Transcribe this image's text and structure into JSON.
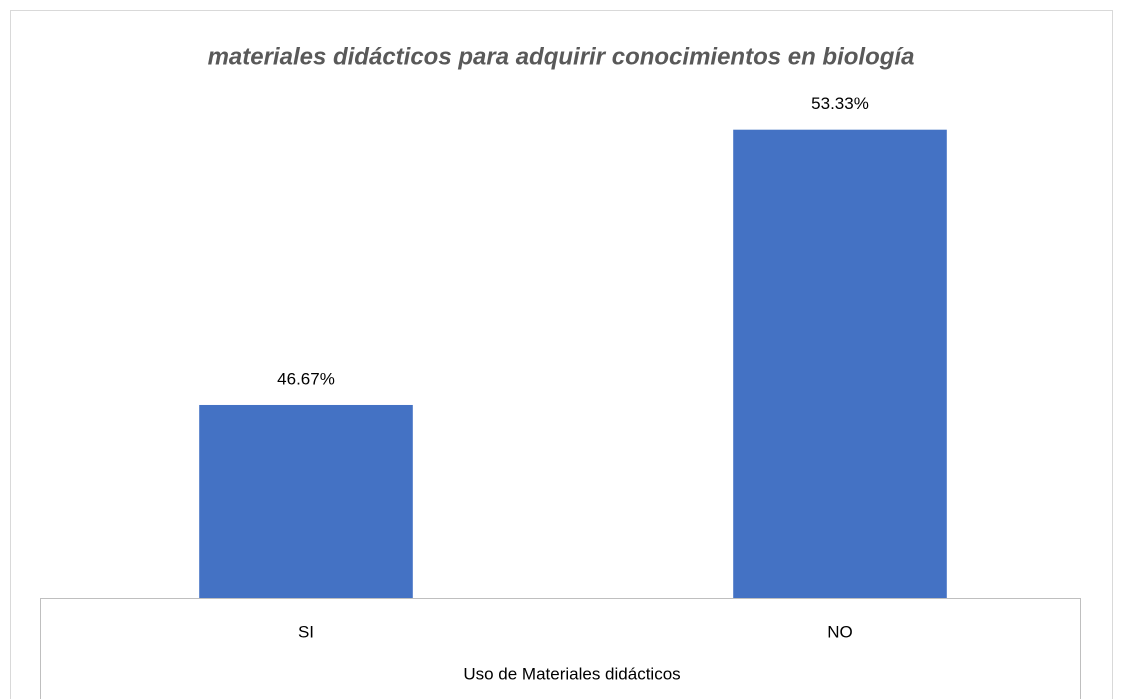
{
  "chart_data": {
    "type": "bar",
    "title": "materiales didácticos para adquirir conocimientos en biología",
    "x_label": "Uso de Materiales didácticos",
    "categories": [
      "SI",
      "NO"
    ],
    "values": [
      46.67,
      53.33
    ],
    "value_labels": [
      "46.67%",
      "53.33%"
    ],
    "color": "#4472c4",
    "ylim": [
      42,
      54
    ]
  }
}
